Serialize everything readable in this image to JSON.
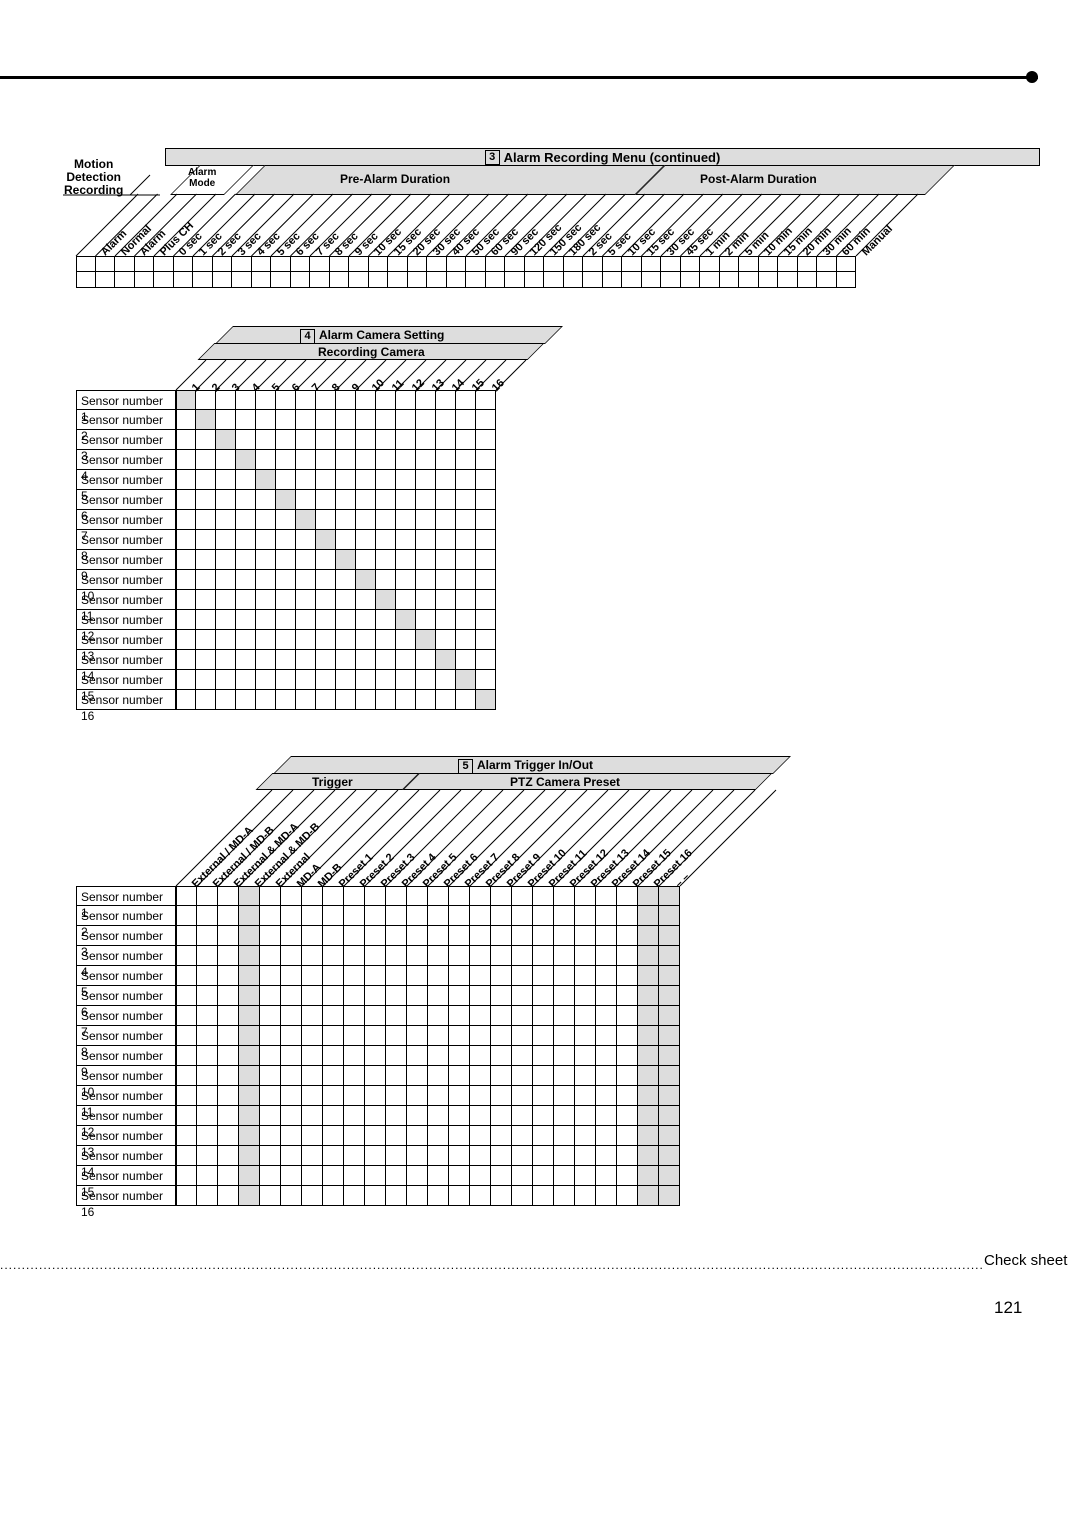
{
  "page_number": "121",
  "footer_label": "Check sheet",
  "section3": {
    "title_num": "3",
    "title": "Alarm Recording Menu (continued)",
    "left_block_lines": [
      "Motion",
      "Detection",
      "Recording"
    ],
    "alarm_mode_lines": [
      "Alarm",
      "Mode"
    ],
    "pre_label": "Pre-Alarm Duration",
    "post_label": "Post-Alarm Duration",
    "cols_block1": [
      "Alarm",
      "Normal",
      "Alarm",
      "Plus CH"
    ],
    "cols_block2": [
      "0 sec",
      "1 sec",
      "2 sec",
      "3 sec",
      "4 sec",
      "5 sec",
      "6 sec",
      "7 sec",
      "8 sec",
      "9 sec",
      "10 sec",
      "15 sec",
      "20 sec",
      "30 sec",
      "40 sec",
      "50 sec",
      "60 sec",
      "90 sec",
      "120 sec",
      "150 sec",
      "180 sec"
    ],
    "cols_block3": [
      "2 sec",
      "5 sec",
      "10 sec",
      "15 sec",
      "30 sec",
      "45 sec",
      "1 min",
      "2 min",
      "5 min",
      "10 min",
      "15 min",
      "20 min",
      "30 min",
      "60 min",
      "Manual"
    ]
  },
  "section4": {
    "title_num": "4",
    "title": "Alarm Camera Setting",
    "sub": "Recording Camera",
    "cols": [
      "1",
      "2",
      "3",
      "4",
      "5",
      "6",
      "7",
      "8",
      "9",
      "10",
      "11",
      "12",
      "13",
      "14",
      "15",
      "16"
    ],
    "rows": [
      "Sensor number 1",
      "Sensor number 2",
      "Sensor number 3",
      "Sensor number 4",
      "Sensor number 5",
      "Sensor number 6",
      "Sensor number 7",
      "Sensor number 8",
      "Sensor number 9",
      "Sensor number 10",
      "Sensor number 11",
      "Sensor number 12",
      "Sensor number 13",
      "Sensor number 14",
      "Sensor number 15",
      "Sensor number 16"
    ],
    "diag": [
      0,
      1,
      2,
      3,
      4,
      5,
      6,
      7,
      8,
      9,
      10,
      11,
      12,
      13,
      14,
      15
    ]
  },
  "section5": {
    "title_num": "5",
    "title": "Alarm Trigger In/Out",
    "trigger_label": "Trigger",
    "ptz_label": "PTZ Camera Preset",
    "cols": [
      "External / MD-A",
      "External / MD-B",
      "External & MD-A",
      "External & MD-B",
      "External",
      "MD-A",
      "MD-B",
      "Preset 1",
      "Preset 2",
      "Preset 3",
      "Preset 4",
      "Preset 5",
      "Preset 6",
      "Preset 7",
      "Preset 8",
      "Preset 9",
      "Preset 10",
      "Preset 11",
      "Preset 12",
      "Preset 13",
      "Preset 14",
      "Preset 15",
      "Preset 16",
      "– –"
    ],
    "rows": [
      "Sensor number 1",
      "Sensor number 2",
      "Sensor number 3",
      "Sensor number 4",
      "Sensor number 5",
      "Sensor number 6",
      "Sensor number 7",
      "Sensor number 8",
      "Sensor number 9",
      "Sensor number 10",
      "Sensor number 11",
      "Sensor number 12",
      "Sensor number 13",
      "Sensor number 14",
      "Sensor number 15",
      "Sensor number 16"
    ],
    "grey_cols": [
      3,
      22,
      23
    ]
  },
  "colors": {
    "grey": "#dddddd",
    "line": "#000000",
    "bg": "#ffffff"
  }
}
